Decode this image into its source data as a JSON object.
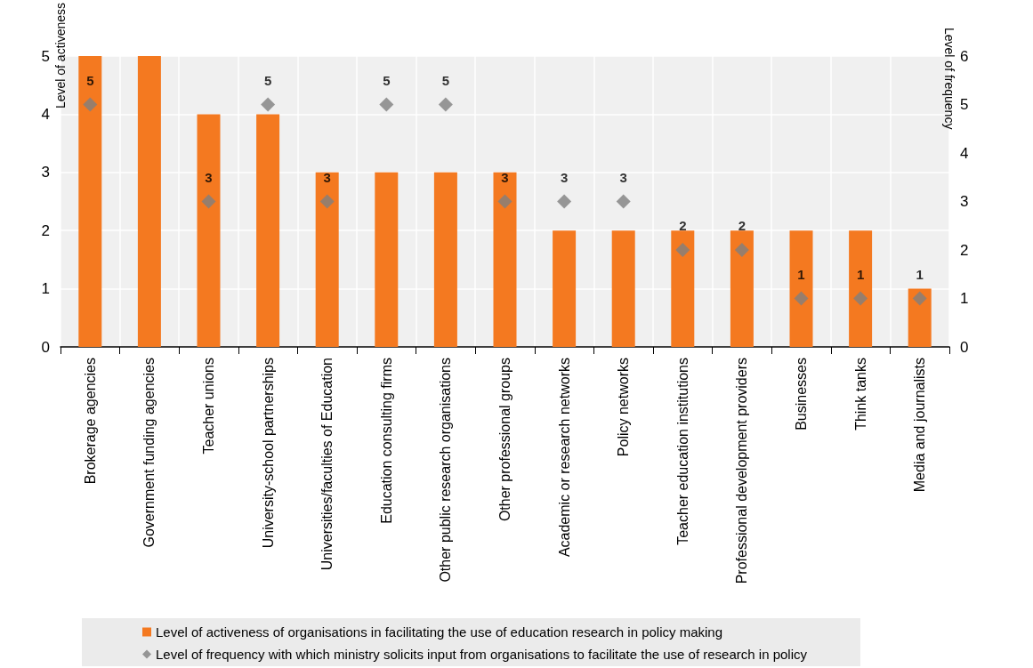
{
  "chart_data": {
    "type": "bar",
    "categories": [
      "Brokerage agencies",
      "Government funding agencies",
      "Teacher unions",
      "University-school partnerships",
      "Universities/faculties of Education",
      "Education consulting firms",
      "Other public research organisations",
      "Other professional groups",
      "Academic or research networks",
      "Policy networks",
      "Teacher education institutions",
      "Professional development providers",
      "Businesses",
      "Think tanks",
      "Media and journalists"
    ],
    "series": [
      {
        "name": "Level of activeness of organisations in facilitating the use of education research in policy making",
        "color": "#f47920",
        "values": [
          5,
          5,
          4,
          4,
          3,
          3,
          3,
          3,
          2,
          2,
          2,
          2,
          2,
          2,
          1
        ]
      },
      {
        "name": "Level of frequency with which ministry solicits input from organisations to facilitate the use of research in policy",
        "type": "scatter",
        "axis": "y2",
        "color": "#808080",
        "marker": "diamond",
        "values": [
          5,
          null,
          3,
          5,
          3,
          5,
          5,
          3,
          3,
          3,
          2,
          2,
          1,
          1,
          1
        ],
        "value_labels": [
          "5",
          null,
          "3",
          "5",
          "3",
          "5",
          "5",
          "3",
          "3",
          "3",
          "2",
          "2",
          "1",
          "1",
          "1"
        ]
      }
    ],
    "ylabel": "Level of activeness",
    "y2label": "Level of frequency",
    "ylim": [
      0,
      5
    ],
    "yticks": [
      0,
      1,
      2,
      3,
      4,
      5
    ],
    "y2lim": [
      0,
      6
    ],
    "y2ticks": [
      0,
      1,
      2,
      3,
      4,
      5,
      6
    ],
    "grid": true,
    "legend": "bottom"
  }
}
